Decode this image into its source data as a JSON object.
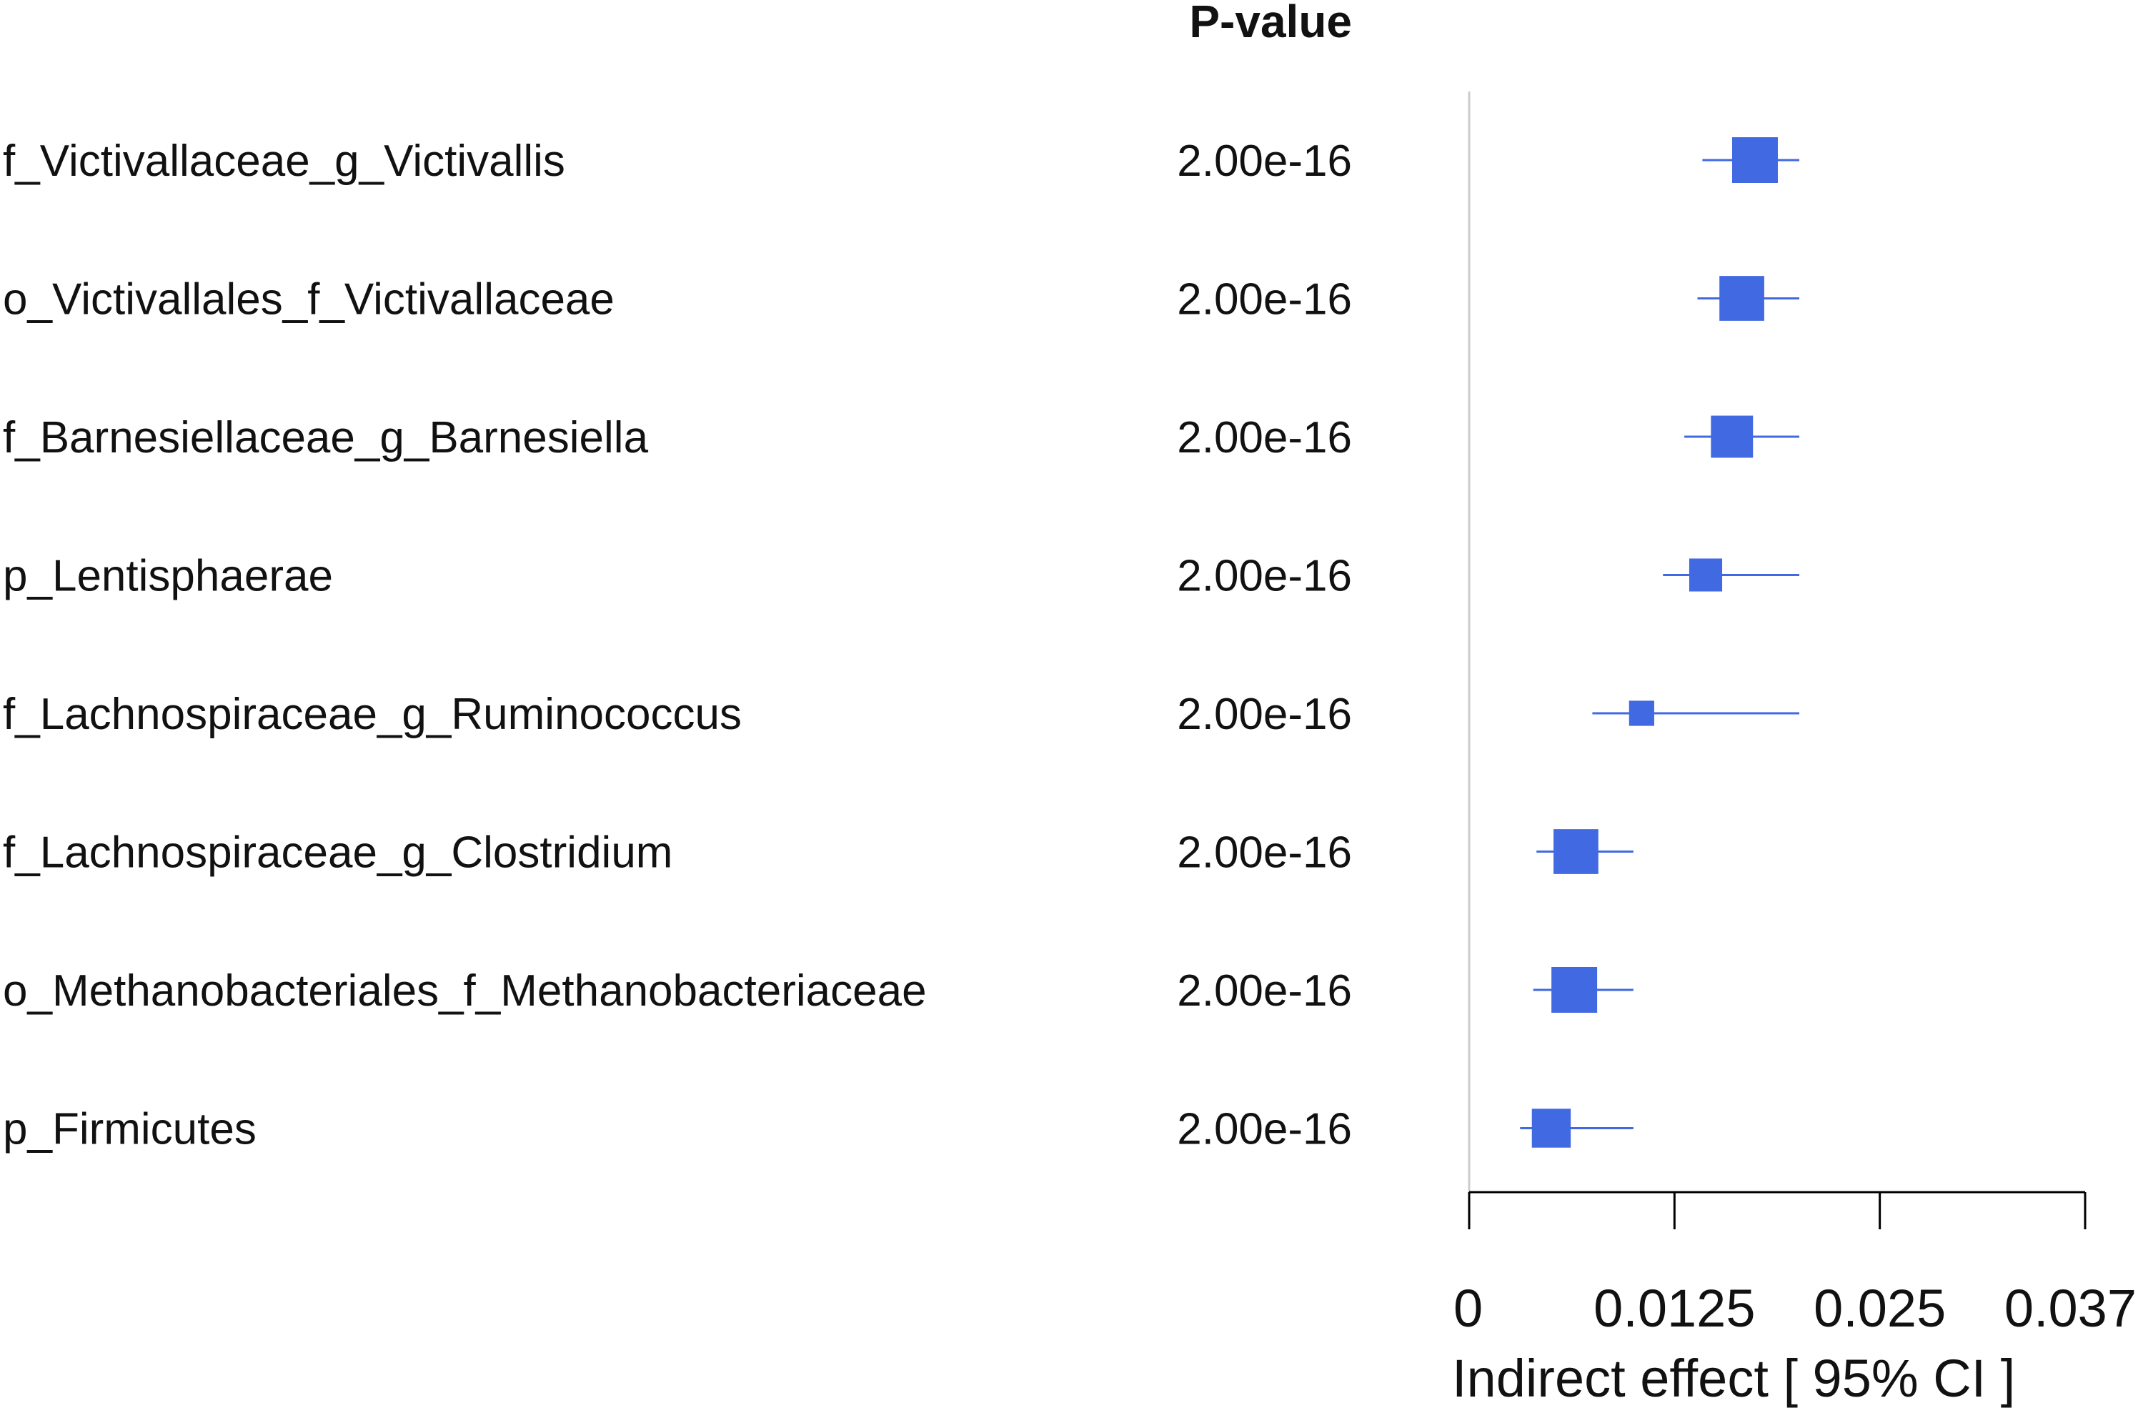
{
  "chart_data": {
    "type": "forest",
    "pvalue_header": "P-value",
    "xlabel": "Indirect effect [ 95% CI ]",
    "xlim": [
      0,
      0.0375
    ],
    "x_ticks": [
      0,
      0.0125,
      0.025,
      0.0375
    ],
    "x_tick_labels": [
      "0",
      "0.0125",
      "0.025",
      "0.037"
    ],
    "reference_line": 0,
    "marker_color": "#4169E1",
    "rows": [
      {
        "label": "f_Victivallaceae_g_Victivallis",
        "p_value": "2.00e-16",
        "estimate": 0.0174,
        "ci_low": 0.0142,
        "ci_high": 0.0201,
        "weight": 1.0
      },
      {
        "label": "o_Victivallales_f_Victivallaceae",
        "p_value": "2.00e-16",
        "estimate": 0.0166,
        "ci_low": 0.0139,
        "ci_high": 0.0201,
        "weight": 0.98
      },
      {
        "label": "f_Barnesiellaceae_g_Barnesiella",
        "p_value": "2.00e-16",
        "estimate": 0.016,
        "ci_low": 0.0131,
        "ci_high": 0.0201,
        "weight": 0.92
      },
      {
        "label": "p_Lentisphaerae",
        "p_value": "2.00e-16",
        "estimate": 0.0144,
        "ci_low": 0.0118,
        "ci_high": 0.0201,
        "weight": 0.72
      },
      {
        "label": "f_Lachnospiraceae_g_Ruminococcus",
        "p_value": "2.00e-16",
        "estimate": 0.0105,
        "ci_low": 0.0075,
        "ci_high": 0.0201,
        "weight": 0.55
      },
      {
        "label": "f_Lachnospiraceae_g_Clostridium",
        "p_value": "2.00e-16",
        "estimate": 0.0065,
        "ci_low": 0.0041,
        "ci_high": 0.01,
        "weight": 0.98
      },
      {
        "label": "o_Methanobacteriales_f_Methanobacteriaceae",
        "p_value": "2.00e-16",
        "estimate": 0.0064,
        "ci_low": 0.0039,
        "ci_high": 0.01,
        "weight": 1.0
      },
      {
        "label": "p_Firmicutes",
        "p_value": "2.00e-16",
        "estimate": 0.005,
        "ci_low": 0.0031,
        "ci_high": 0.01,
        "weight": 0.85
      }
    ]
  }
}
